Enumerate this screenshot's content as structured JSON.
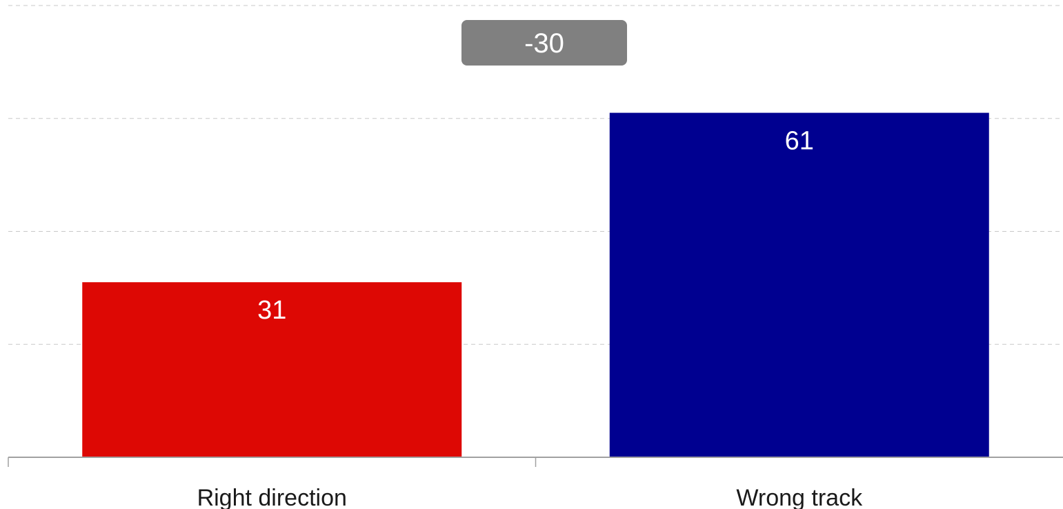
{
  "chart_data": {
    "type": "bar",
    "categories": [
      "Right direction",
      "Wrong track"
    ],
    "values": [
      31,
      61
    ],
    "ylim": [
      0,
      80
    ],
    "grid": true,
    "colors": [
      "#dd0804",
      "#000090"
    ],
    "difference_label": "-30",
    "difference_color": "#808080"
  }
}
